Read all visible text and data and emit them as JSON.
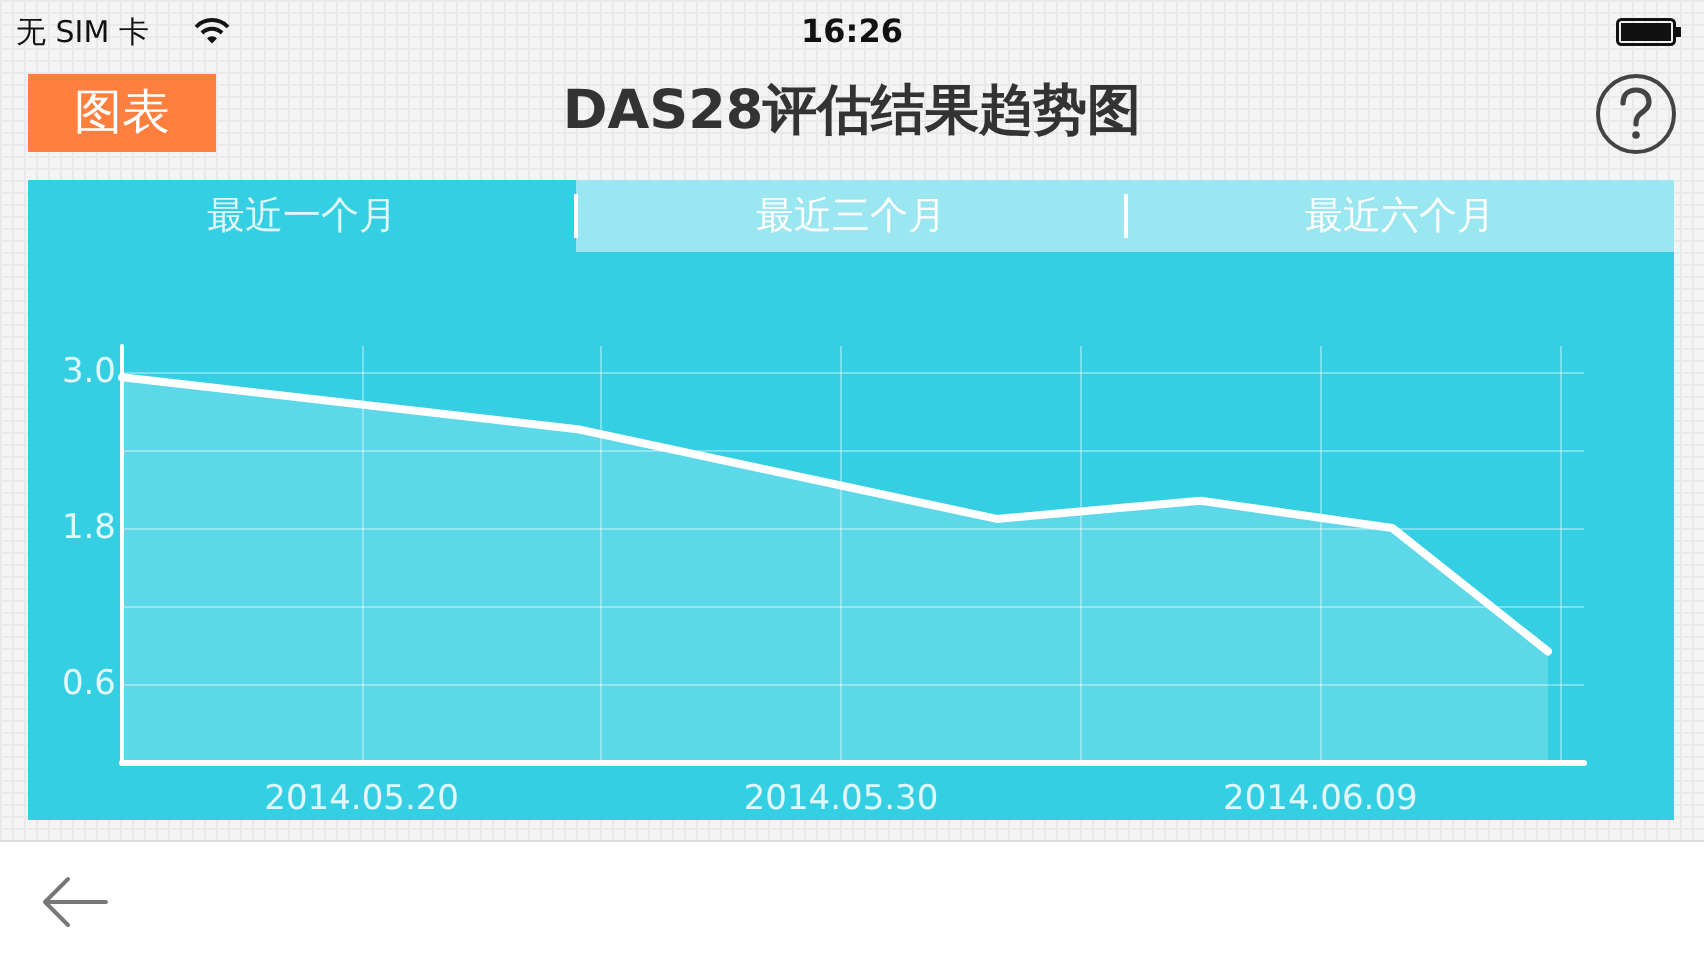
{
  "chart_data": {
    "type": "area",
    "title": "DAS28评估结果趋势图",
    "annotations": [
      "无 SIM 卡",
      "16:26",
      "图表",
      "最近一个月",
      "最近三个月",
      "最近六个月"
    ],
    "x": [
      "2014-05-15",
      "2014-05-24T12:00",
      "2014-06-02T06:00",
      "2014-06-06T12:00",
      "2014-06-10T12:00",
      "2014-06-13T18:00"
    ],
    "values": [
      2.96,
      2.56,
      1.87,
      2.01,
      1.8,
      0.85
    ],
    "color": "#ffffff",
    "xlim": [
      "2014-05-15",
      "2014-06-14T12:00"
    ],
    "xticks": [
      {
        "value": "2014-05-15",
        "label": null
      },
      {
        "value": "2014-05-20",
        "label": "2014.05.20"
      },
      {
        "value": "2014-05-25",
        "label": null
      },
      {
        "value": "2014-05-30",
        "label": "2014.05.30"
      },
      {
        "value": "2014-06-04",
        "label": null
      },
      {
        "value": "2014-06-09",
        "label": "2014.06.09"
      },
      {
        "value": "2014-06-14",
        "label": null
      }
    ],
    "ylim": [
      0,
      3.2
    ],
    "yticks": [
      {
        "value": 0,
        "label": null
      },
      0.6,
      {
        "value": 1.2,
        "label": null
      },
      1.8,
      {
        "value": 2.4,
        "label": null
      },
      {
        "value": 3,
        "label": "3.0"
      }
    ],
    "grid": true
  }
}
